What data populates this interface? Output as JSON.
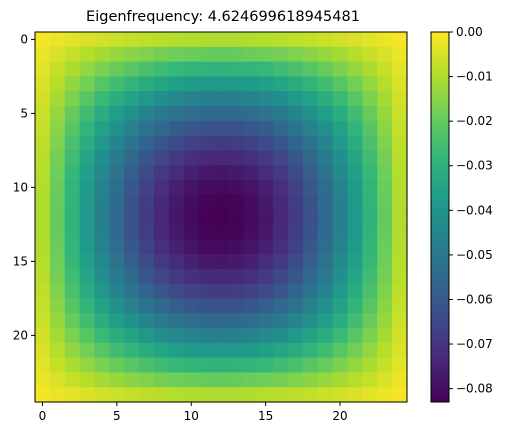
{
  "chart_data": {
    "type": "heatmap",
    "title": "Eigenfrequency: 4.624699618945481",
    "xlabel": "",
    "ylabel": "",
    "nx": 25,
    "ny": 25,
    "function": "-A*sin(pi*(i+1)/26)*sin(pi*(j+1)/26)",
    "amplitude": 0.0832,
    "x_ticks": [
      0,
      5,
      10,
      15,
      20
    ],
    "y_ticks": [
      0,
      5,
      10,
      15,
      20
    ],
    "colorbar": {
      "min": -0.083,
      "max": 0.0,
      "ticks": [
        0.0,
        -0.01,
        -0.02,
        -0.03,
        -0.04,
        -0.05,
        -0.06,
        -0.07,
        -0.08
      ],
      "tick_labels": [
        "0.00",
        "−0.01",
        "−0.02",
        "−0.03",
        "−0.04",
        "−0.05",
        "−0.06",
        "−0.07",
        "−0.08"
      ]
    },
    "colormap": "viridis",
    "grid": false
  }
}
